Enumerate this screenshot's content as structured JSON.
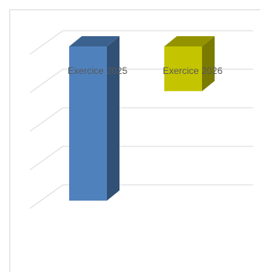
{
  "chart_data": {
    "type": "bar",
    "style": "3d-column",
    "categories": [
      "Exercice 2025",
      "Exercice 2026"
    ],
    "values": [
      100,
      29
    ],
    "ylim": [
      0,
      100
    ],
    "grid": true,
    "axis_tick_labels_visible": false,
    "colors": {
      "Exercice 2025": "#4f81bd",
      "Exercice 2026": "#c4c400"
    },
    "title": "",
    "xlabel": "",
    "ylabel": ""
  }
}
